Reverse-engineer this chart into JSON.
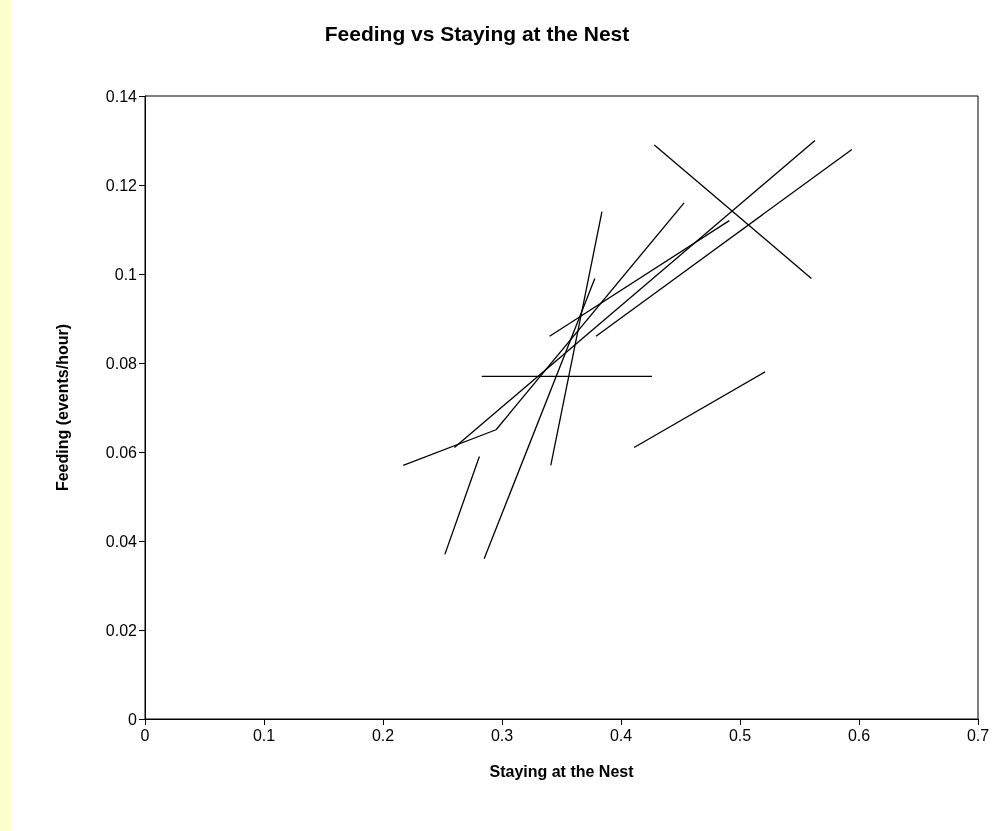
{
  "chart_data": {
    "type": "line",
    "title": "Feeding vs Staying at the Nest",
    "xlabel": "Staying at the Nest",
    "ylabel": "Feeding (events/hour)",
    "xlim": [
      0,
      0.7
    ],
    "xticks": [
      0,
      0.1,
      0.2,
      0.3,
      0.4,
      0.5,
      0.6,
      0.7
    ],
    "ylim": [
      0,
      0.14
    ],
    "yticks": [
      0,
      0.02,
      0.04,
      0.06,
      0.08,
      0.1,
      0.12,
      0.14
    ],
    "grid": false,
    "marker": "none",
    "line_style": "solid",
    "series": [
      {
        "color": "#000000",
        "x": [
          0.428,
          0.56
        ],
        "values": [
          0.129,
          0.099
        ]
      },
      {
        "color": "#000000",
        "x": [
          0.26,
          0.563
        ],
        "values": [
          0.061,
          0.13
        ]
      },
      {
        "color": "#000000",
        "x": [
          0.379,
          0.594
        ],
        "values": [
          0.086,
          0.128
        ]
      },
      {
        "color": "#000000",
        "x": [
          0.295,
          0.453
        ],
        "values": [
          0.065,
          0.116
        ]
      },
      {
        "color": "#000000",
        "x": [
          0.34,
          0.491
        ],
        "values": [
          0.086,
          0.112
        ]
      },
      {
        "color": "#000000",
        "x": [
          0.341,
          0.384
        ],
        "values": [
          0.057,
          0.114
        ]
      },
      {
        "color": "#000000",
        "x": [
          0.285,
          0.378
        ],
        "values": [
          0.036,
          0.099
        ]
      },
      {
        "color": "#000000",
        "x": [
          0.252,
          0.281
        ],
        "values": [
          0.037,
          0.059
        ]
      },
      {
        "color": "#000000",
        "x": [
          0.217,
          0.295
        ],
        "values": [
          0.057,
          0.065
        ]
      },
      {
        "color": "#000000",
        "x": [
          0.283,
          0.426
        ],
        "values": [
          0.077,
          0.077
        ]
      },
      {
        "color": "#000000",
        "x": [
          0.411,
          0.521
        ],
        "values": [
          0.061,
          0.078
        ]
      }
    ]
  }
}
